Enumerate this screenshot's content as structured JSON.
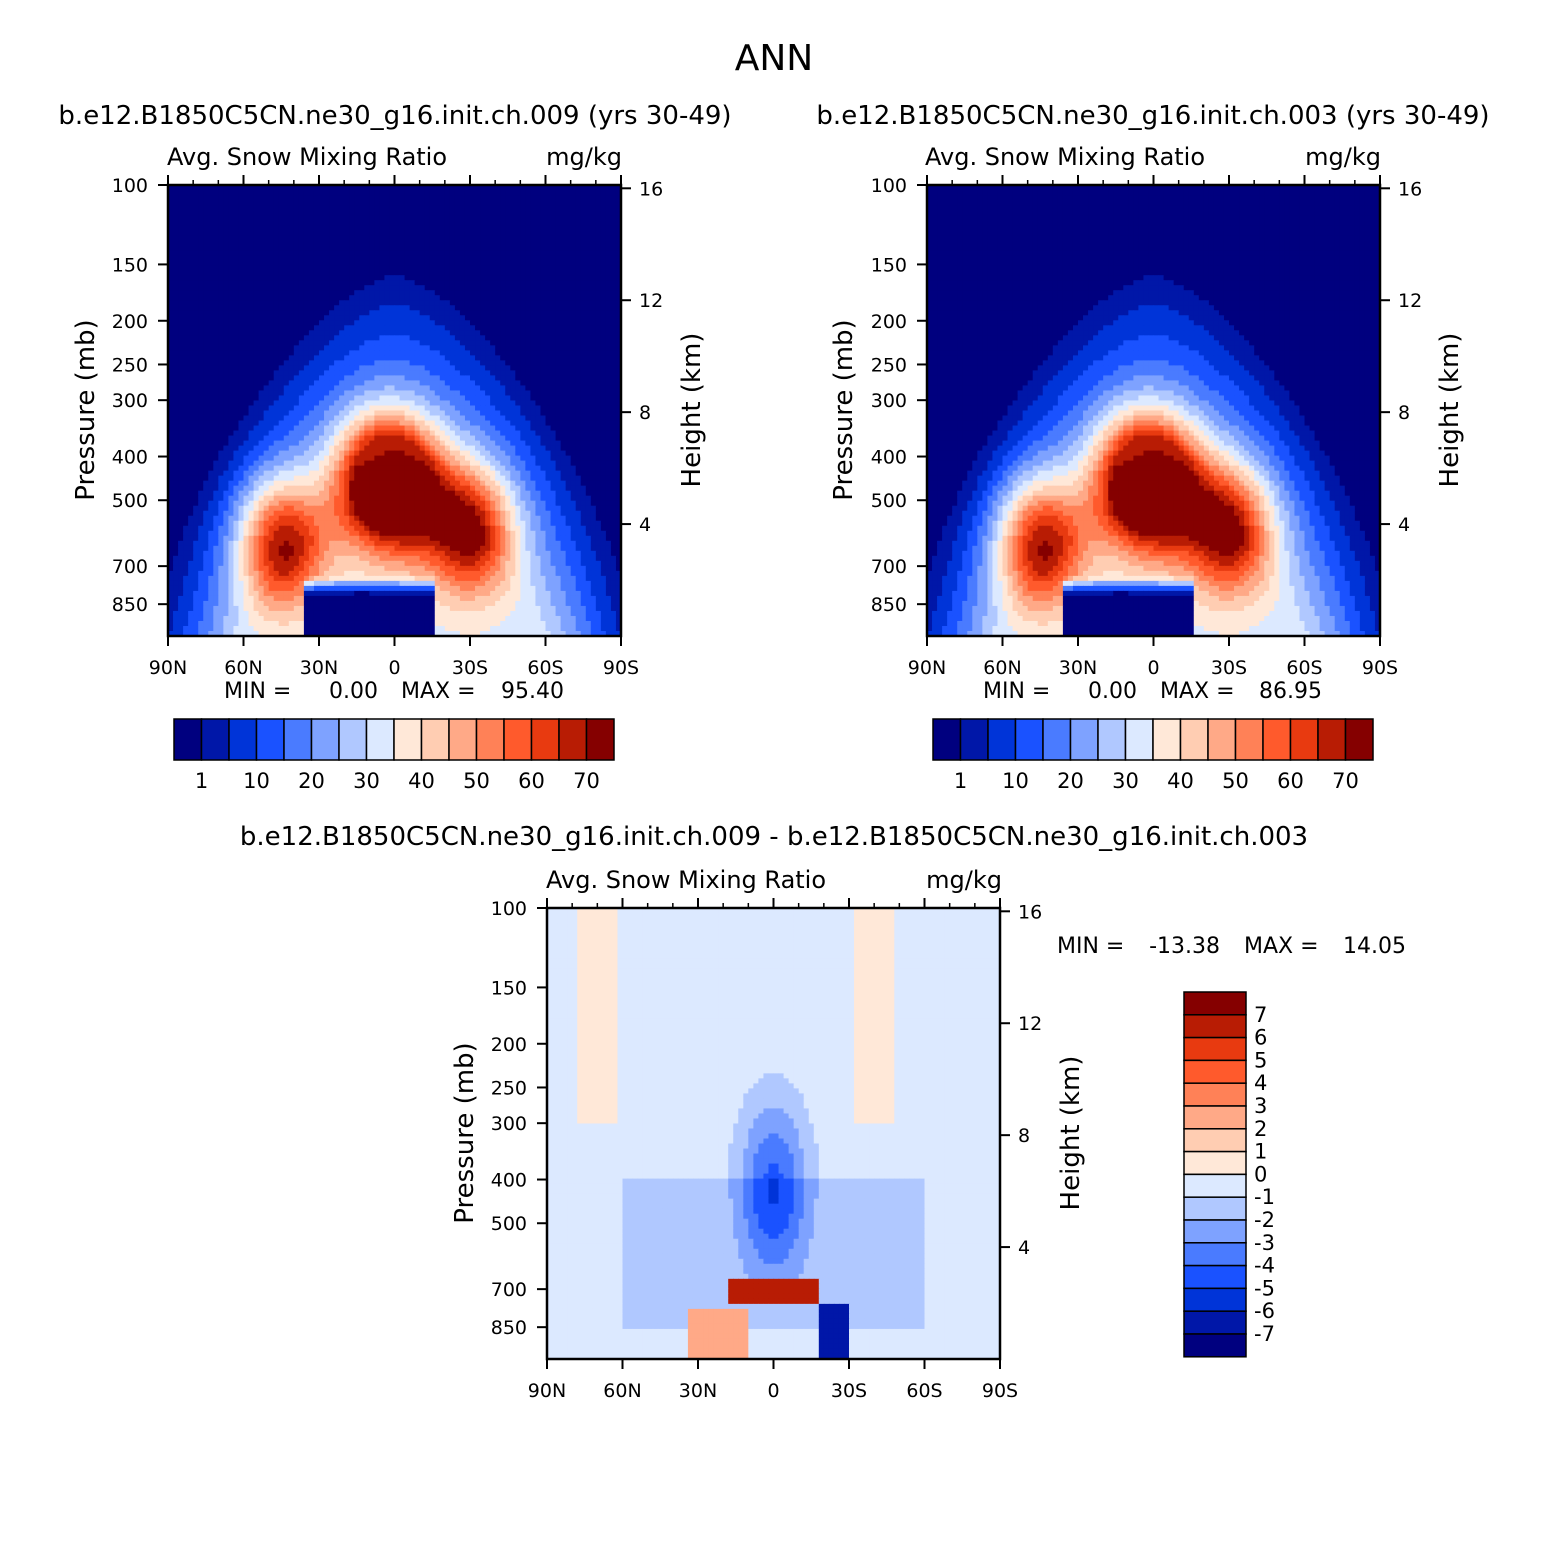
{
  "figure": {
    "title": "ANN"
  },
  "colors": {
    "abs_scale": [
      "#00007f",
      "#0017a8",
      "#0034d8",
      "#1a52ff",
      "#4a7bff",
      "#7ea2ff",
      "#b0c8ff",
      "#dce9ff",
      "#ffe8d8",
      "#ffcdb2",
      "#ffa987",
      "#ff8157",
      "#ff5a2c",
      "#e83a10",
      "#b81c04",
      "#850000"
    ],
    "diff_scale": [
      "#850000",
      "#b81c04",
      "#e83a10",
      "#ff5a2c",
      "#ff8157",
      "#ffa987",
      "#ffcdb2",
      "#ffe8d8",
      "#dce9ff",
      "#b0c8ff",
      "#7ea2ff",
      "#4a7bff",
      "#1a52ff",
      "#0034d8",
      "#0017a8",
      "#00007f"
    ]
  },
  "chart_data": [
    {
      "type": "heatmap",
      "title": "b.e12.B1850C5CN.ne30_g16.init.ch.009 (yrs 30-49)",
      "left_string": "Avg. Snow Mixing Ratio",
      "right_string": "mg/kg",
      "ylabel": "Pressure (mb)",
      "y2label": "Height (km)",
      "x_ticks": [
        "90N",
        "60N",
        "30N",
        "0",
        "30S",
        "60S",
        "90S"
      ],
      "y_ticks": [
        100,
        150,
        200,
        250,
        300,
        400,
        500,
        700,
        850
      ],
      "y2_ticks": [
        16,
        12,
        8,
        4
      ],
      "ylim": [
        100,
        1000
      ],
      "xlim": [
        90,
        -90
      ],
      "min_label": "MIN =",
      "min_value": "0.00",
      "max_label": "MAX =",
      "max_value": "95.40",
      "colorbar_labels": [
        "1",
        "10",
        "20",
        "30",
        "40",
        "50",
        "60",
        "70"
      ],
      "peak_lobes": [
        {
          "lat": 45,
          "p": 620,
          "level": 15
        },
        {
          "lat": 8,
          "p": 450,
          "level": 15
        },
        {
          "lat": -5,
          "p": 470,
          "level": 15
        },
        {
          "lat": -30,
          "p": 580,
          "level": 15
        }
      ],
      "low_level_minimum": {
        "lat": 10,
        "p": 900
      }
    },
    {
      "type": "heatmap",
      "title": "b.e12.B1850C5CN.ne30_g16.init.ch.003 (yrs 30-49)",
      "left_string": "Avg. Snow Mixing Ratio",
      "right_string": "mg/kg",
      "ylabel": "Pressure (mb)",
      "y2label": "Height (km)",
      "x_ticks": [
        "90N",
        "60N",
        "30N",
        "0",
        "30S",
        "60S",
        "90S"
      ],
      "y_ticks": [
        100,
        150,
        200,
        250,
        300,
        400,
        500,
        700,
        850
      ],
      "y2_ticks": [
        16,
        12,
        8,
        4
      ],
      "ylim": [
        100,
        1000
      ],
      "xlim": [
        90,
        -90
      ],
      "min_label": "MIN =",
      "min_value": "0.00",
      "max_label": "MAX =",
      "max_value": "86.95",
      "colorbar_labels": [
        "1",
        "10",
        "20",
        "30",
        "40",
        "50",
        "60",
        "70"
      ],
      "peak_lobes": [
        {
          "lat": 45,
          "p": 620,
          "level": 15
        },
        {
          "lat": 8,
          "p": 450,
          "level": 15
        },
        {
          "lat": -5,
          "p": 470,
          "level": 15
        },
        {
          "lat": -30,
          "p": 580,
          "level": 15
        }
      ],
      "low_level_minimum": {
        "lat": 10,
        "p": 900
      }
    },
    {
      "type": "heatmap",
      "title": "b.e12.B1850C5CN.ne30_g16.init.ch.009 - b.e12.B1850C5CN.ne30_g16.init.ch.003",
      "left_string": "Avg. Snow Mixing Ratio",
      "right_string": "mg/kg",
      "ylabel": "Pressure (mb)",
      "y2label": "Height (km)",
      "x_ticks": [
        "90N",
        "60N",
        "30N",
        "0",
        "30S",
        "60S",
        "90S"
      ],
      "y_ticks": [
        100,
        150,
        200,
        250,
        300,
        400,
        500,
        700,
        850
      ],
      "y2_ticks": [
        16,
        12,
        8,
        4
      ],
      "ylim": [
        100,
        1000
      ],
      "xlim": [
        90,
        -90
      ],
      "min_label": "MIN =",
      "min_value": "-13.38",
      "max_label": "MAX =",
      "max_value": "14.05",
      "colorbar_labels": [
        "7",
        "6",
        "5",
        "4",
        "3",
        "2",
        "1",
        "0",
        "-1",
        "-2",
        "-3",
        "-4",
        "-5",
        "-6",
        "-7"
      ]
    }
  ]
}
